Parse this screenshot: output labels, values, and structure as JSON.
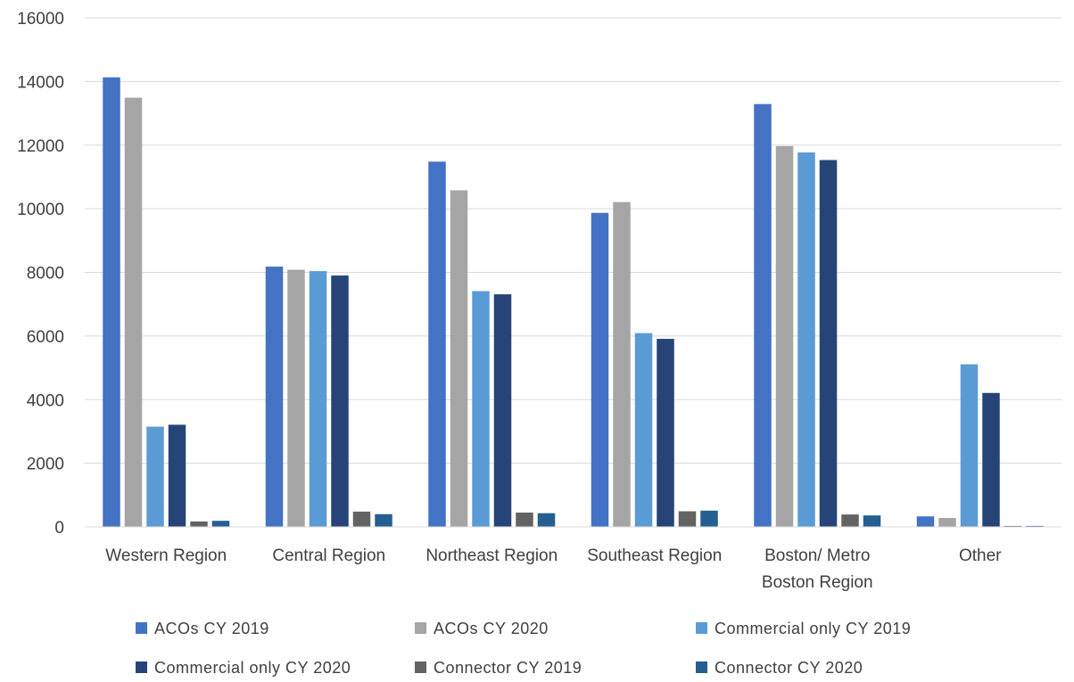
{
  "chart_data": {
    "type": "bar",
    "title": "",
    "xlabel": "",
    "ylabel": "",
    "ylim": [
      0,
      16000
    ],
    "yticks": [
      0,
      2000,
      4000,
      6000,
      8000,
      10000,
      12000,
      14000,
      16000
    ],
    "grid": true,
    "legend_position": "bottom",
    "categories": [
      [
        "Western Region"
      ],
      [
        "Central Region"
      ],
      [
        "Northeast Region"
      ],
      [
        "Southeast Region"
      ],
      [
        "Boston/ Metro",
        "Boston Region"
      ],
      [
        "Other"
      ]
    ],
    "series": [
      {
        "name": "ACOs CY 2019",
        "color": "#4472c4",
        "values": [
          14130,
          8180,
          11480,
          9870,
          13290,
          330
        ]
      },
      {
        "name": "ACOs CY 2020",
        "color": "#a5a5a5",
        "values": [
          13490,
          8080,
          10580,
          10210,
          11970,
          280
        ]
      },
      {
        "name": "Commercial only CY 2019",
        "color": "#5b9bd5",
        "values": [
          3150,
          8040,
          7410,
          6090,
          11770,
          5110
        ]
      },
      {
        "name": "Commercial only CY 2020",
        "color": "#264478",
        "values": [
          3210,
          7900,
          7310,
          5910,
          11530,
          4210
        ]
      },
      {
        "name": "Connector CY 2019",
        "color": "#636363",
        "values": [
          170,
          480,
          450,
          490,
          390,
          30
        ]
      },
      {
        "name": "Connector CY 2020",
        "color": "#255e91",
        "values": [
          190,
          400,
          430,
          510,
          360,
          30
        ]
      }
    ]
  }
}
